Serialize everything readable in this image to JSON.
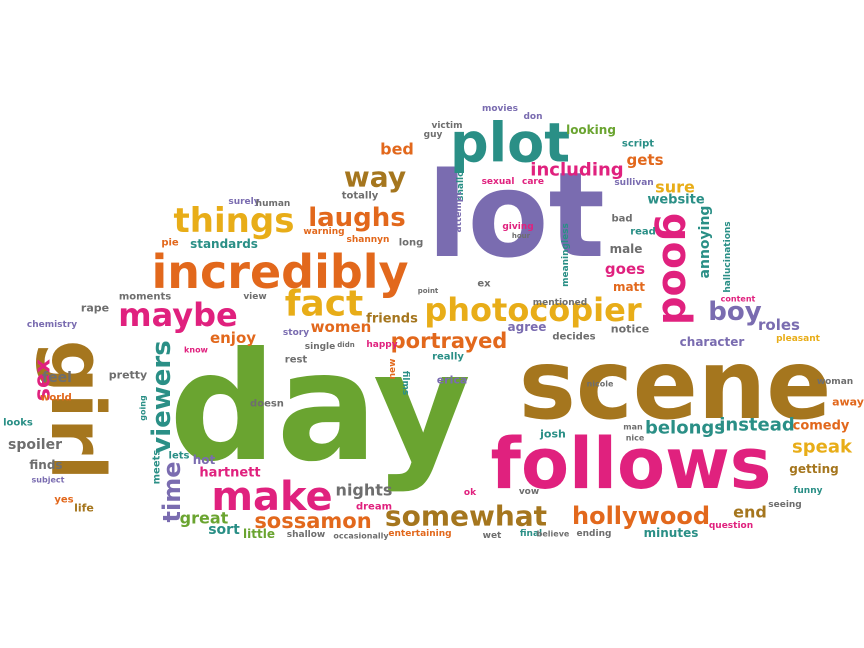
{
  "palette": {
    "purple": "#7a6cb0",
    "green": "#6aa430",
    "brown": "#a5761e",
    "pink": "#e0217e",
    "orange": "#e2681c",
    "gold": "#e8ad18",
    "teal": "#2a8f86",
    "gray": "#6e6e6e"
  },
  "words": [
    {
      "id": "day",
      "text": "day",
      "color": "green"
    },
    {
      "id": "lot",
      "text": "lot",
      "color": "purple"
    },
    {
      "id": "scene",
      "text": "scene",
      "color": "brown"
    },
    {
      "id": "follows",
      "text": "follows",
      "color": "pink"
    },
    {
      "id": "girl",
      "text": "girl",
      "color": "brown"
    },
    {
      "id": "incredibly",
      "text": "incredibly",
      "color": "orange"
    },
    {
      "id": "plot",
      "text": "plot",
      "color": "teal"
    },
    {
      "id": "photocopier",
      "text": "photocopier",
      "color": "gold"
    },
    {
      "id": "make",
      "text": "make",
      "color": "pink"
    },
    {
      "id": "good",
      "text": "good",
      "color": "pink"
    },
    {
      "id": "things",
      "text": "things",
      "color": "gold"
    },
    {
      "id": "fact",
      "text": "fact",
      "color": "gold"
    },
    {
      "id": "maybe",
      "text": "maybe",
      "color": "pink"
    },
    {
      "id": "laughs",
      "text": "laughs",
      "color": "orange"
    },
    {
      "id": "somewhat",
      "text": "somewhat",
      "color": "brown"
    },
    {
      "id": "hollywood",
      "text": "hollywood",
      "color": "orange"
    },
    {
      "id": "viewers",
      "text": "viewers",
      "color": "teal"
    },
    {
      "id": "time",
      "text": "time",
      "color": "purple"
    },
    {
      "id": "way",
      "text": "way",
      "color": "brown"
    },
    {
      "id": "boy",
      "text": "boy",
      "color": "purple"
    },
    {
      "id": "portrayed",
      "text": "portrayed",
      "color": "orange"
    },
    {
      "id": "sossamon",
      "text": "sossamon",
      "color": "orange"
    },
    {
      "id": "instead",
      "text": "instead",
      "color": "teal"
    },
    {
      "id": "belongs",
      "text": "belongs",
      "color": "teal"
    },
    {
      "id": "speak",
      "text": "speak",
      "color": "gold"
    },
    {
      "id": "including",
      "text": "including",
      "color": "pink"
    },
    {
      "id": "great",
      "text": "great",
      "color": "green"
    },
    {
      "id": "sex",
      "text": "sex",
      "color": "pink"
    },
    {
      "id": "nights",
      "text": "nights",
      "color": "gray"
    },
    {
      "id": "sure",
      "text": "sure",
      "color": "gold"
    },
    {
      "id": "gets",
      "text": "gets",
      "color": "orange"
    },
    {
      "id": "goes",
      "text": "goes",
      "color": "pink"
    },
    {
      "id": "annoying",
      "text": "annoying",
      "color": "teal"
    },
    {
      "id": "women",
      "text": "women",
      "color": "orange"
    },
    {
      "id": "roles",
      "text": "roles",
      "color": "purple"
    },
    {
      "id": "character",
      "text": "character",
      "color": "purple"
    },
    {
      "id": "end",
      "text": "end",
      "color": "brown"
    },
    {
      "id": "comedy",
      "text": "comedy",
      "color": "orange"
    },
    {
      "id": "enjoy",
      "text": "enjoy",
      "color": "orange"
    },
    {
      "id": "website",
      "text": "website",
      "color": "teal"
    },
    {
      "id": "looking",
      "text": "looking",
      "color": "green"
    },
    {
      "id": "bed",
      "text": "bed",
      "color": "orange"
    },
    {
      "id": "sort",
      "text": "sort",
      "color": "teal"
    },
    {
      "id": "hartnett",
      "text": "hartnett",
      "color": "pink"
    },
    {
      "id": "hot",
      "text": "hot",
      "color": "purple"
    },
    {
      "id": "minutes",
      "text": "minutes",
      "color": "teal"
    },
    {
      "id": "friends",
      "text": "friends",
      "color": "brown"
    },
    {
      "id": "agree",
      "text": "agree",
      "color": "purple"
    },
    {
      "id": "notice",
      "text": "notice",
      "color": "gray"
    },
    {
      "id": "getting",
      "text": "getting",
      "color": "brown"
    },
    {
      "id": "feel",
      "text": "feel",
      "color": "gray"
    },
    {
      "id": "pretty",
      "text": "pretty",
      "color": "gray"
    },
    {
      "id": "spoiler",
      "text": "spoiler",
      "color": "gray"
    },
    {
      "id": "finds",
      "text": "finds",
      "color": "gray"
    },
    {
      "id": "standards",
      "text": "standards",
      "color": "teal"
    },
    {
      "id": "rape",
      "text": "rape",
      "color": "gray"
    },
    {
      "id": "chemistry",
      "text": "chemistry",
      "color": "purple"
    },
    {
      "id": "moments",
      "text": "moments",
      "color": "gray"
    },
    {
      "id": "little",
      "text": "little",
      "color": "green"
    },
    {
      "id": "josh",
      "text": "josh",
      "color": "teal"
    },
    {
      "id": "matt",
      "text": "matt",
      "color": "orange"
    },
    {
      "id": "male",
      "text": "male",
      "color": "gray"
    },
    {
      "id": "bad",
      "text": "bad",
      "color": "gray"
    },
    {
      "id": "read",
      "text": "read",
      "color": "teal"
    },
    {
      "id": "mentioned",
      "text": "mentioned",
      "color": "gray"
    },
    {
      "id": "decides",
      "text": "decides",
      "color": "gray"
    },
    {
      "id": "erica",
      "text": "erica",
      "color": "purple"
    },
    {
      "id": "really",
      "text": "really",
      "color": "teal"
    },
    {
      "id": "totally",
      "text": "totally",
      "color": "gray"
    },
    {
      "id": "long",
      "text": "long",
      "color": "gray"
    },
    {
      "id": "dream",
      "text": "dream",
      "color": "pink"
    },
    {
      "id": "life",
      "text": "life",
      "color": "brown"
    },
    {
      "id": "yes",
      "text": "yes",
      "color": "orange"
    },
    {
      "id": "world",
      "text": "world",
      "color": "orange"
    },
    {
      "id": "looks",
      "text": "looks",
      "color": "teal"
    },
    {
      "id": "meets",
      "text": "meets",
      "color": "teal"
    },
    {
      "id": "lets",
      "text": "lets",
      "color": "teal"
    },
    {
      "id": "doesn",
      "text": "doesn",
      "color": "gray"
    },
    {
      "id": "happy",
      "text": "happy",
      "color": "pink"
    },
    {
      "id": "rest",
      "text": "rest",
      "color": "gray"
    },
    {
      "id": "single",
      "text": "single",
      "color": "gray"
    },
    {
      "id": "story",
      "text": "story",
      "color": "purple"
    },
    {
      "id": "view",
      "text": "view",
      "color": "gray"
    },
    {
      "id": "know",
      "text": "know",
      "color": "pink"
    },
    {
      "id": "pie",
      "text": "pie",
      "color": "orange"
    },
    {
      "id": "warning",
      "text": "warning",
      "color": "orange"
    },
    {
      "id": "shannyn",
      "text": "shannyn",
      "color": "orange"
    },
    {
      "id": "surely",
      "text": "surely",
      "color": "purple"
    },
    {
      "id": "human",
      "text": "human",
      "color": "gray"
    },
    {
      "id": "victim",
      "text": "victim",
      "color": "gray"
    },
    {
      "id": "guy",
      "text": "guy",
      "color": "gray"
    },
    {
      "id": "movies",
      "text": "movies",
      "color": "purple"
    },
    {
      "id": "don",
      "text": "don",
      "color": "purple"
    },
    {
      "id": "script",
      "text": "script",
      "color": "teal"
    },
    {
      "id": "shallowness",
      "text": "shallowness",
      "color": "teal"
    },
    {
      "id": "attempt",
      "text": "attempt",
      "color": "purple"
    },
    {
      "id": "sexual",
      "text": "sexual",
      "color": "pink"
    },
    {
      "id": "care",
      "text": "care",
      "color": "pink"
    },
    {
      "id": "sullivan",
      "text": "sullivan",
      "color": "purple"
    },
    {
      "id": "giving",
      "text": "giving",
      "color": "pink"
    },
    {
      "id": "hour",
      "text": "hour",
      "color": "gray"
    },
    {
      "id": "meaningless",
      "text": "meaningless",
      "color": "teal"
    },
    {
      "id": "hallucinations",
      "text": "hallucinations",
      "color": "teal"
    },
    {
      "id": "content",
      "text": "content",
      "color": "pink"
    },
    {
      "id": "pleasant",
      "text": "pleasant",
      "color": "gold"
    },
    {
      "id": "woman",
      "text": "woman",
      "color": "gray"
    },
    {
      "id": "away",
      "text": "away",
      "color": "orange"
    },
    {
      "id": "funny",
      "text": "funny",
      "color": "teal"
    },
    {
      "id": "seeing",
      "text": "seeing",
      "color": "gray"
    },
    {
      "id": "question",
      "text": "question",
      "color": "pink"
    },
    {
      "id": "ending",
      "text": "ending",
      "color": "gray"
    },
    {
      "id": "final",
      "text": "final",
      "color": "teal"
    },
    {
      "id": "believe",
      "text": "believe",
      "color": "gray"
    },
    {
      "id": "wet",
      "text": "wet",
      "color": "gray"
    },
    {
      "id": "entertaining",
      "text": "entertaining",
      "color": "orange"
    },
    {
      "id": "occasionally",
      "text": "occasionally",
      "color": "gray"
    },
    {
      "id": "shallow",
      "text": "shallow",
      "color": "gray"
    },
    {
      "id": "ok",
      "text": "ok",
      "color": "pink"
    },
    {
      "id": "vow",
      "text": "vow",
      "color": "gray"
    },
    {
      "id": "man",
      "text": "man",
      "color": "gray"
    },
    {
      "id": "nice",
      "text": "nice",
      "color": "gray"
    },
    {
      "id": "nicole",
      "text": "nicole",
      "color": "gray"
    },
    {
      "id": "films",
      "text": "films",
      "color": "teal"
    },
    {
      "id": "new",
      "text": "new",
      "color": "orange"
    },
    {
      "id": "going",
      "text": "going",
      "color": "teal"
    },
    {
      "id": "subject",
      "text": "subject",
      "color": "purple"
    },
    {
      "id": "didn",
      "text": "didn",
      "color": "gray"
    },
    {
      "id": "point",
      "text": "point",
      "color": "gray"
    },
    {
      "id": "ex",
      "text": "ex",
      "color": "gray"
    }
  ]
}
